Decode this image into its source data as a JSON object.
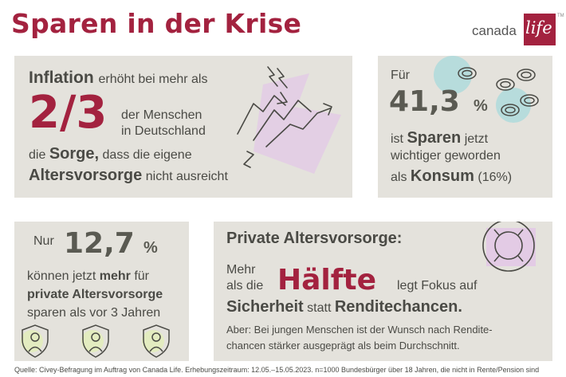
{
  "header": {
    "title": "Sparen in der Krise",
    "logo_text": "canada",
    "logo_mark": "life",
    "logo_tm": "TM"
  },
  "card_inflation": {
    "lead_bold": "Inflation",
    "lead_rest": "erhöht bei mehr als",
    "big": "2/3",
    "line_a": "der Menschen",
    "line_b": "in Deutschland",
    "line3_pre": "die",
    "line3_bold": "Sorge,",
    "line3_rest": "dass die eigene",
    "line4_bold": "Altersvorsorge",
    "line4_rest": "nicht ausreicht",
    "icon": "rising-arrows-lightning-icon"
  },
  "card_sparen": {
    "pre": "Für",
    "big": "41,3",
    "unit": "%",
    "line1_pre": "ist",
    "line1_bold": "Sparen",
    "line1_rest": "jetzt",
    "line2": "wichtiger geworden",
    "line3_pre": "als",
    "line3_bold": "Konsum",
    "line3_rest": "(16%)",
    "icon": "coins-icon"
  },
  "card_mehr": {
    "pre": "Nur",
    "big": "12,7",
    "unit": "%",
    "line1_pre": "können jetzt",
    "line1_bold": "mehr",
    "line1_rest": "für",
    "line2_bold": "private Altersvorsorge",
    "line3": "sparen als vor 3 Jahren",
    "icon": "shield-person-icon"
  },
  "card_private": {
    "heading": "Private Altersvorsorge:",
    "line1": "Mehr",
    "line2": "als die",
    "big": "Hälfte",
    "after_big": "legt Fokus auf",
    "line3_bold1": "Sicherheit",
    "line3_mid": "statt",
    "line3_bold2": "Renditechancen.",
    "note1": "Aber: Bei jungen Menschen ist der Wunsch nach Rendite-",
    "note2": "chancen stärker ausgeprägt als beim Durchschnitt.",
    "icon": "lifebuoy-icon"
  },
  "footer": {
    "source": "Quelle: Civey-Befragung im Auftrag von Canada Life. Erhebungszeitraum: 12.05.–15.05.2023. n=1000 Bundesbürger über 18 Jahren, die nicht in Rente/Pension sind"
  },
  "colors": {
    "brand_red": "#a3223f",
    "card_bg": "#e4e2dc",
    "text": "#4a4a45",
    "accent_lilac": "#e3cbe5",
    "accent_teal": "#b7dcdc",
    "accent_lime": "#e3ecc0"
  }
}
